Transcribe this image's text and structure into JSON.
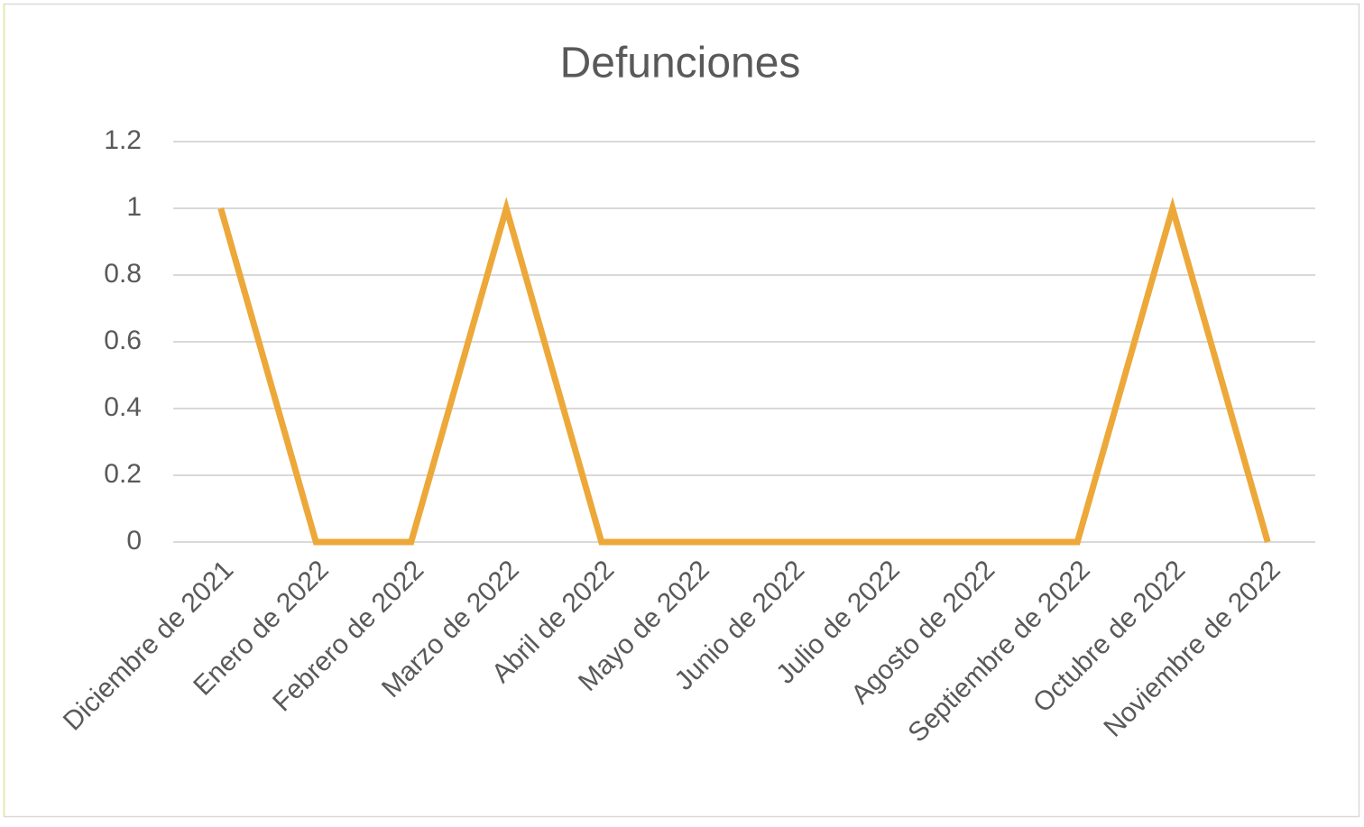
{
  "chart_data": {
    "type": "line",
    "title": "Defunciones",
    "categories": [
      "Diciembre de 2021",
      "Enero de 2022",
      "Febrero de 2022",
      "Marzo de 2022",
      "Abril de 2022",
      "Mayo de 2022",
      "Junio de 2022",
      "Julio de 2022",
      "Agosto de 2022",
      "Septiembre de 2022",
      "Octubre de 2022",
      "Noviembre de 2022"
    ],
    "series": [
      {
        "name": "Defunciones",
        "color": "#eda83a",
        "values": [
          1,
          0,
          0,
          1,
          0,
          0,
          0,
          0,
          0,
          0,
          1,
          0
        ]
      }
    ],
    "ylim": [
      0,
      1.2
    ],
    "yticks": [
      0,
      0.2,
      0.4,
      0.6,
      0.8,
      1,
      1.2
    ],
    "grid": true
  }
}
